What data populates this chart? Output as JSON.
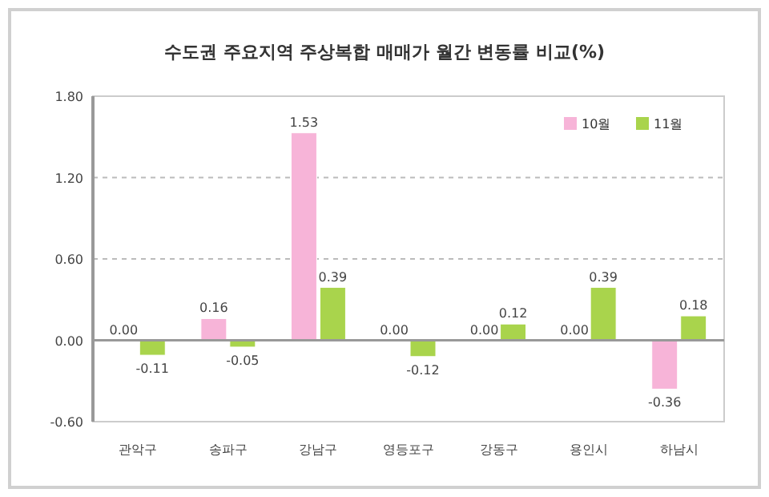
{
  "chart_data": {
    "type": "bar",
    "title": "수도권 주요지역 주상복합 매매가 월간 변동률 비교(%)",
    "categories": [
      "관악구",
      "송파구",
      "강남구",
      "영등포구",
      "강동구",
      "용인시",
      "하남시"
    ],
    "series": [
      {
        "name": "10월",
        "color": "#f7b4d8",
        "values": [
          0.0,
          0.16,
          1.53,
          0.0,
          0.0,
          0.0,
          -0.36
        ],
        "value_labels": [
          "0.00",
          "0.16",
          "1.53",
          "0.00",
          "0.00",
          "0.00",
          "-0.36"
        ]
      },
      {
        "name": "11월",
        "color": "#a9d44c",
        "values": [
          -0.11,
          -0.05,
          0.39,
          -0.12,
          0.12,
          0.39,
          0.18
        ],
        "value_labels": [
          "-0.11",
          "-0.05",
          "0.39",
          "-0.12",
          "0.12",
          "0.39",
          "0.18"
        ]
      }
    ],
    "ylim": [
      -0.6,
      1.8
    ],
    "yticks": [
      {
        "value": -0.6,
        "label": "-0.60"
      },
      {
        "value": 0,
        "label": "0.00"
      },
      {
        "value": 0.6,
        "label": "0.60"
      },
      {
        "value": 1.2,
        "label": "1.20"
      },
      {
        "value": 1.8,
        "label": "1.80"
      }
    ],
    "grid": "y",
    "legend": "top right"
  }
}
